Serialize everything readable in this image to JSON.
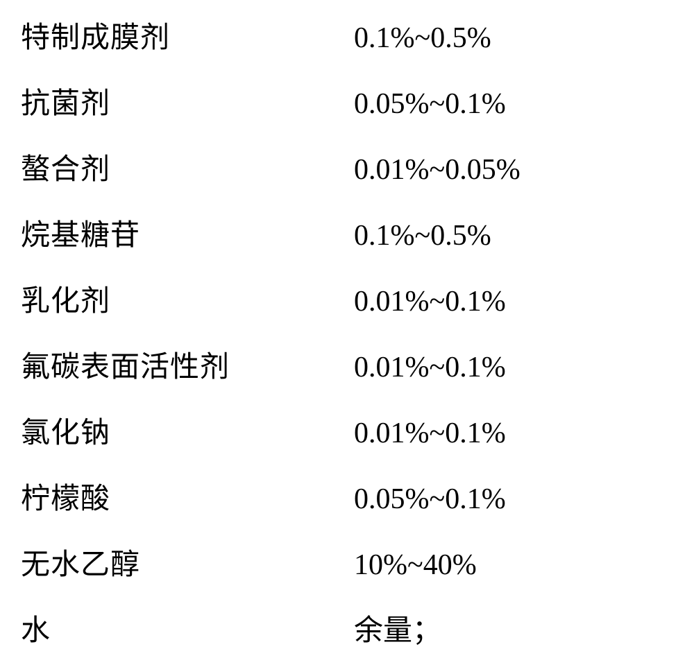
{
  "composition_table": {
    "type": "table",
    "background_color": "#ffffff",
    "text_color": "#000000",
    "font_family": "SimSun",
    "font_size": 42,
    "label_column_width": 480,
    "row_spacing": 34,
    "rows": [
      {
        "label": "特制成膜剂",
        "value": "0.1%~0.5%"
      },
      {
        "label": "抗菌剂",
        "value": "0.05%~0.1%"
      },
      {
        "label": "螯合剂",
        "value": "0.01%~0.05%"
      },
      {
        "label": "烷基糖苷",
        "value": "0.1%~0.5%"
      },
      {
        "label": "乳化剂",
        "value": "0.01%~0.1%"
      },
      {
        "label": "氟碳表面活性剂",
        "value": "0.01%~0.1%"
      },
      {
        "label": "氯化钠",
        "value": "0.01%~0.1%"
      },
      {
        "label": "柠檬酸",
        "value": "0.05%~0.1%"
      },
      {
        "label": "无水乙醇",
        "value": "10%~40%"
      },
      {
        "label": "水",
        "value": "余量；"
      }
    ]
  }
}
